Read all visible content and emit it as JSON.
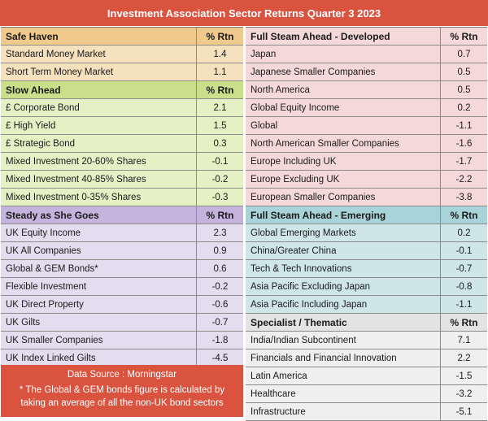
{
  "title": "Investment Association Sector Returns Quarter 3 2023",
  "left": {
    "safe_haven": {
      "header": "Safe Haven",
      "rtn_label": "% Rtn",
      "rows": [
        {
          "name": "Standard Money Market",
          "value": "1.4"
        },
        {
          "name": "Short Term Money Market",
          "value": "1.1"
        }
      ]
    },
    "slow_ahead": {
      "header": "Slow Ahead",
      "rtn_label": "% Rtn",
      "rows": [
        {
          "name": "£ Corporate Bond",
          "value": "2.1"
        },
        {
          "name": "£ High Yield",
          "value": "1.5"
        },
        {
          "name": "£ Strategic Bond",
          "value": "0.3"
        },
        {
          "name": "Mixed Investment 20-60% Shares",
          "value": "-0.1"
        },
        {
          "name": "Mixed Investment 40-85% Shares",
          "value": "-0.2"
        },
        {
          "name": "Mixed Investment 0-35% Shares",
          "value": "-0.3"
        }
      ]
    },
    "steady": {
      "header": "Steady as She Goes",
      "rtn_label": "% Rtn",
      "rows": [
        {
          "name": "UK Equity Income",
          "value": "2.3"
        },
        {
          "name": "UK All Companies",
          "value": "0.9"
        },
        {
          "name": "Global & GEM Bonds*",
          "value": "0.6"
        },
        {
          "name": "Flexible Investment",
          "value": "-0.2"
        },
        {
          "name": "UK Direct Property",
          "value": "-0.6"
        },
        {
          "name": "UK Gilts",
          "value": "-0.7"
        },
        {
          "name": "UK Smaller Companies",
          "value": "-1.8"
        },
        {
          "name": "UK Index Linked Gilts",
          "value": "-4.5"
        }
      ]
    },
    "source": "Data Source : Morningstar",
    "footnote_line1": "* The Global & GEM bonds figure is calculated by",
    "footnote_line2": "taking an average of all the non-UK bond sectors"
  },
  "right": {
    "developed": {
      "header": "Full Steam Ahead - Developed",
      "rtn_label": "% Rtn",
      "rows": [
        {
          "name": "Japan",
          "value": "0.7"
        },
        {
          "name": "Japanese Smaller Companies",
          "value": "0.5"
        },
        {
          "name": "North America",
          "value": "0.5"
        },
        {
          "name": "Global Equity Income",
          "value": "0.2"
        },
        {
          "name": "Global",
          "value": "-1.1"
        },
        {
          "name": "North American Smaller Companies",
          "value": "-1.6"
        },
        {
          "name": "Europe Including UK",
          "value": "-1.7"
        },
        {
          "name": "Europe Excluding UK",
          "value": "-2.2"
        },
        {
          "name": "European Smaller Companies",
          "value": "-3.8"
        }
      ]
    },
    "emerging": {
      "header": "Full Steam Ahead - Emerging",
      "rtn_label": "% Rtn",
      "rows": [
        {
          "name": "Global Emerging Markets",
          "value": "0.2"
        },
        {
          "name": "China/Greater China",
          "value": "-0.1"
        },
        {
          "name": "Tech & Tech Innovations",
          "value": "-0.7"
        },
        {
          "name": "Asia Pacific Excluding Japan",
          "value": "-0.8"
        },
        {
          "name": "Asia Pacific Including Japan",
          "value": "-1.1"
        }
      ]
    },
    "specialist": {
      "header": "Specialist / Thematic",
      "rtn_label": "% Rtn",
      "rows": [
        {
          "name": "India/Indian Subcontinent",
          "value": "7.1"
        },
        {
          "name": "Financials and Financial Innovation",
          "value": "2.2"
        },
        {
          "name": "Latin America",
          "value": "-1.5"
        },
        {
          "name": "Healthcare",
          "value": "-3.2"
        },
        {
          "name": "Infrastructure",
          "value": "-5.1"
        }
      ]
    }
  }
}
